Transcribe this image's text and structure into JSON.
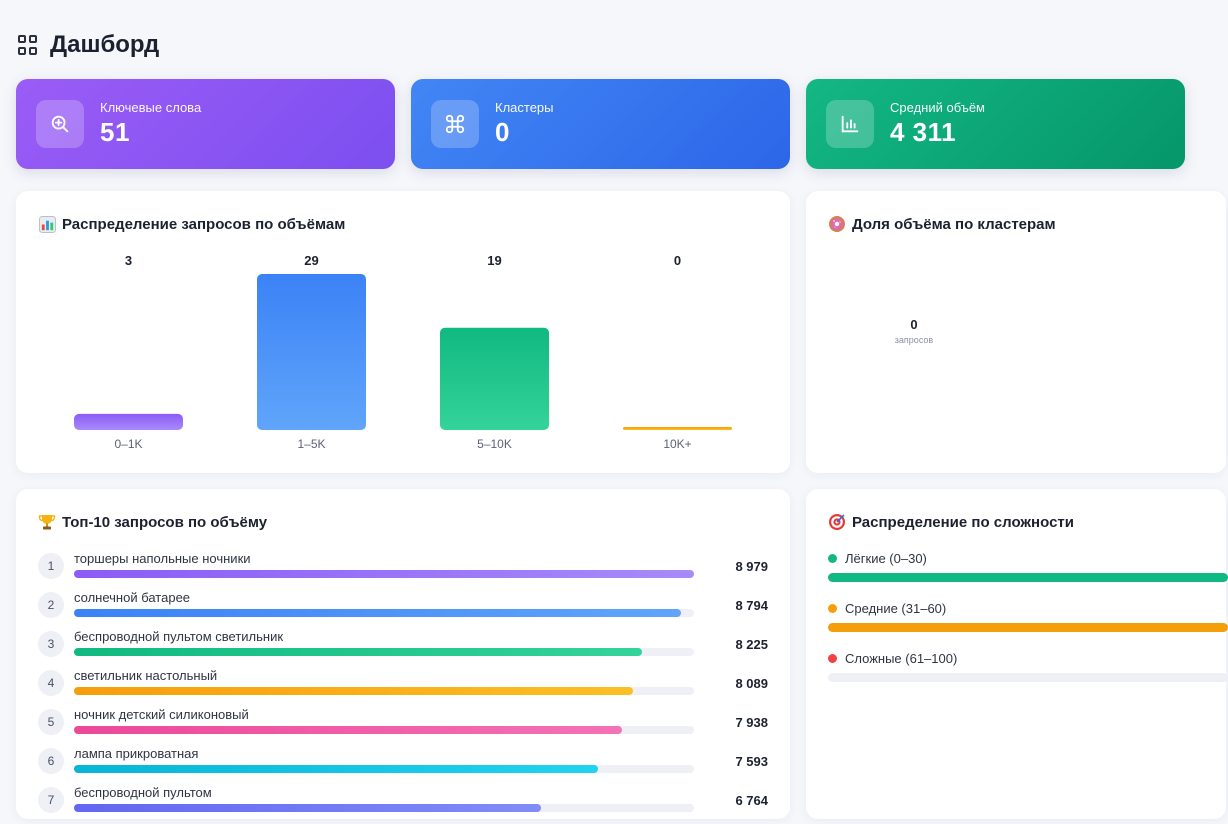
{
  "header": {
    "title": "Дашборд"
  },
  "stats": [
    {
      "label": "Ключевые слова",
      "value": "51",
      "icon": "search-plus-icon"
    },
    {
      "label": "Кластеры",
      "value": "0",
      "icon": "command-icon"
    },
    {
      "label": "Средний объём",
      "value": "4 311",
      "icon": "bar-chart-icon"
    }
  ],
  "volume_card": {
    "title": "Распределение запросов по объёмам",
    "icon": "chart-emoji-icon"
  },
  "share_card": {
    "title": "Доля объёма по кластерам",
    "icon": "donut-emoji-icon",
    "center_value": "0",
    "center_label": "запросов"
  },
  "top_card": {
    "title": "Топ-10 запросов по объёму",
    "icon": "trophy-emoji-icon"
  },
  "difficulty_card": {
    "title": "Распределение по сложности",
    "icon": "target-emoji-icon",
    "items": [
      {
        "label": "Лёгкие (0–30)",
        "color": "#10b981",
        "share": 1.0
      },
      {
        "label": "Средние (31–60)",
        "color": "#f59e0b",
        "share": 1.0
      },
      {
        "label": "Сложные (61–100)",
        "color": "#ef4444",
        "share": 0.0
      }
    ]
  },
  "top_queries": [
    {
      "rank": "1",
      "keyword": "торшеры напольные ночники",
      "volume_label": "8 979",
      "volume": 8979,
      "color": [
        "#8b5cf6",
        "#a78bfa"
      ]
    },
    {
      "rank": "2",
      "keyword": "солнечной батарее",
      "volume_label": "8 794",
      "volume": 8794,
      "color": [
        "#3b82f6",
        "#60a5fa"
      ]
    },
    {
      "rank": "3",
      "keyword": "беспроводной пультом светильник",
      "volume_label": "8 225",
      "volume": 8225,
      "color": [
        "#10b981",
        "#34d399"
      ]
    },
    {
      "rank": "4",
      "keyword": "светильник настольный",
      "volume_label": "8 089",
      "volume": 8089,
      "color": [
        "#f59e0b",
        "#fbbf24"
      ]
    },
    {
      "rank": "5",
      "keyword": "ночник детский силиконовый",
      "volume_label": "7 938",
      "volume": 7938,
      "color": [
        "#ec4899",
        "#f472b6"
      ]
    },
    {
      "rank": "6",
      "keyword": "лампа прикроватная",
      "volume_label": "7 593",
      "volume": 7593,
      "color": [
        "#06b6d4",
        "#22d3ee"
      ]
    },
    {
      "rank": "7",
      "keyword": "беспроводной пультом",
      "volume_label": "6 764",
      "volume": 6764,
      "color": [
        "#6366f1",
        "#818cf8"
      ]
    }
  ],
  "chart_data": {
    "type": "bar",
    "categories": [
      "0–1K",
      "1–5K",
      "5–10K",
      "10K+"
    ],
    "values": [
      3,
      29,
      19,
      0
    ],
    "value_labels": [
      "3",
      "29",
      "19",
      "0"
    ],
    "colors": [
      [
        "#8b5cf6",
        "#a78bfa"
      ],
      [
        "#3b82f6",
        "#60a5fa"
      ],
      [
        "#10b981",
        "#34d399"
      ],
      [
        "#f59e0b",
        "#fbbf24"
      ]
    ],
    "ylim": [
      0,
      29
    ],
    "grid": false
  }
}
